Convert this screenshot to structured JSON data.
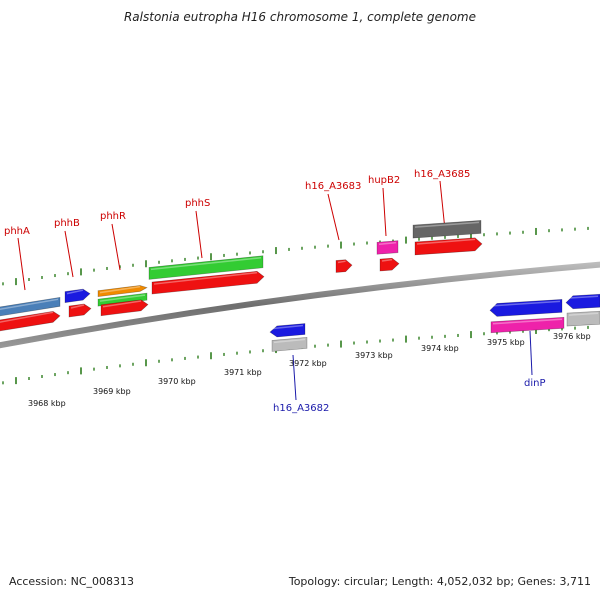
{
  "title": "Ralstonia eutropha H16 chromosome 1, complete genome",
  "footer": {
    "accession": "Accession: NC_008313",
    "summary": "Topology: circular; Length: 4,052,032 bp; Genes: 3,711"
  },
  "colors": {
    "backbone": "#808080",
    "tick": "#2e7d1e",
    "label_top": "#cc0000",
    "label_bottom": "#1a1aaa"
  },
  "scale_labels": [
    "3968 kbp",
    "3969 kbp",
    "3970 kbp",
    "3971 kbp",
    "3972 kbp",
    "3973 kbp",
    "3974 kbp",
    "3975 kbp",
    "3976 kbp"
  ],
  "gene_labels_top": [
    "phhA",
    "phhB",
    "phhR",
    "phhS",
    "h16_A3683",
    "hupB2",
    "h16_A3685"
  ],
  "gene_labels_bottom": [
    "h16_A3682",
    "dinP"
  ],
  "features": [
    {
      "name": "feature-steelblue-1",
      "color": "#4a7fb8"
    },
    {
      "name": "feature-red-1",
      "color": "#ee1111"
    },
    {
      "name": "feature-blue-phhB",
      "color": "#1a1ae0"
    },
    {
      "name": "feature-red-phhB",
      "color": "#ee1111"
    },
    {
      "name": "feature-orange-phhR",
      "color": "#f08a00"
    },
    {
      "name": "feature-green-phhR",
      "color": "#33cc33"
    },
    {
      "name": "feature-red-phhR",
      "color": "#ee1111"
    },
    {
      "name": "feature-green-phhS",
      "color": "#33cc33"
    },
    {
      "name": "feature-red-phhS",
      "color": "#ee1111"
    },
    {
      "name": "feature-blue-A3682",
      "color": "#1a1ae0"
    },
    {
      "name": "feature-gray-A3682",
      "color": "#bbbbbb"
    },
    {
      "name": "feature-red-A3683",
      "color": "#ee1111"
    },
    {
      "name": "feature-pink-hupB2",
      "color": "#ee22aa"
    },
    {
      "name": "feature-red-hupB2",
      "color": "#ee1111"
    },
    {
      "name": "feature-darkgray-A3685",
      "color": "#666666"
    },
    {
      "name": "feature-red-A3685",
      "color": "#ee1111"
    },
    {
      "name": "feature-blue-dinP",
      "color": "#1a1ae0"
    },
    {
      "name": "feature-pink-dinP",
      "color": "#ee22aa"
    },
    {
      "name": "feature-blue-right",
      "color": "#1a1ae0"
    },
    {
      "name": "feature-gray-right",
      "color": "#bbbbbb"
    }
  ]
}
